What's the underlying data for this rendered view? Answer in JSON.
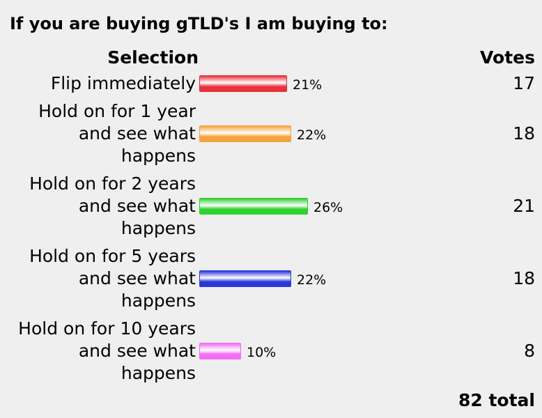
{
  "poll": {
    "title": "If you are buying gTLD's I am buying to:",
    "header_selection": "Selection",
    "header_votes": "Votes",
    "total": "82 total",
    "options": [
      {
        "label_lines": [
          "Flip immediately"
        ],
        "percent_label": "21%",
        "percent": 21,
        "votes": "17",
        "color": "#e8313c"
      },
      {
        "label_lines": [
          "Hold on for 1 year",
          "and see what",
          "happens"
        ],
        "percent_label": "22%",
        "percent": 22,
        "votes": "18",
        "color": "#f5a23a"
      },
      {
        "label_lines": [
          "Hold on for 2 years",
          "and see what",
          "happens"
        ],
        "percent_label": "26%",
        "percent": 26,
        "votes": "21",
        "color": "#2fd12f"
      },
      {
        "label_lines": [
          "Hold on for 5 years",
          "and see what",
          "happens"
        ],
        "percent_label": "22%",
        "percent": 22,
        "votes": "18",
        "color": "#2a38d8"
      },
      {
        "label_lines": [
          "Hold on for 10 years",
          "and see what",
          "happens"
        ],
        "percent_label": "10%",
        "percent": 10,
        "votes": "8",
        "color": "#f36ef3"
      }
    ]
  }
}
